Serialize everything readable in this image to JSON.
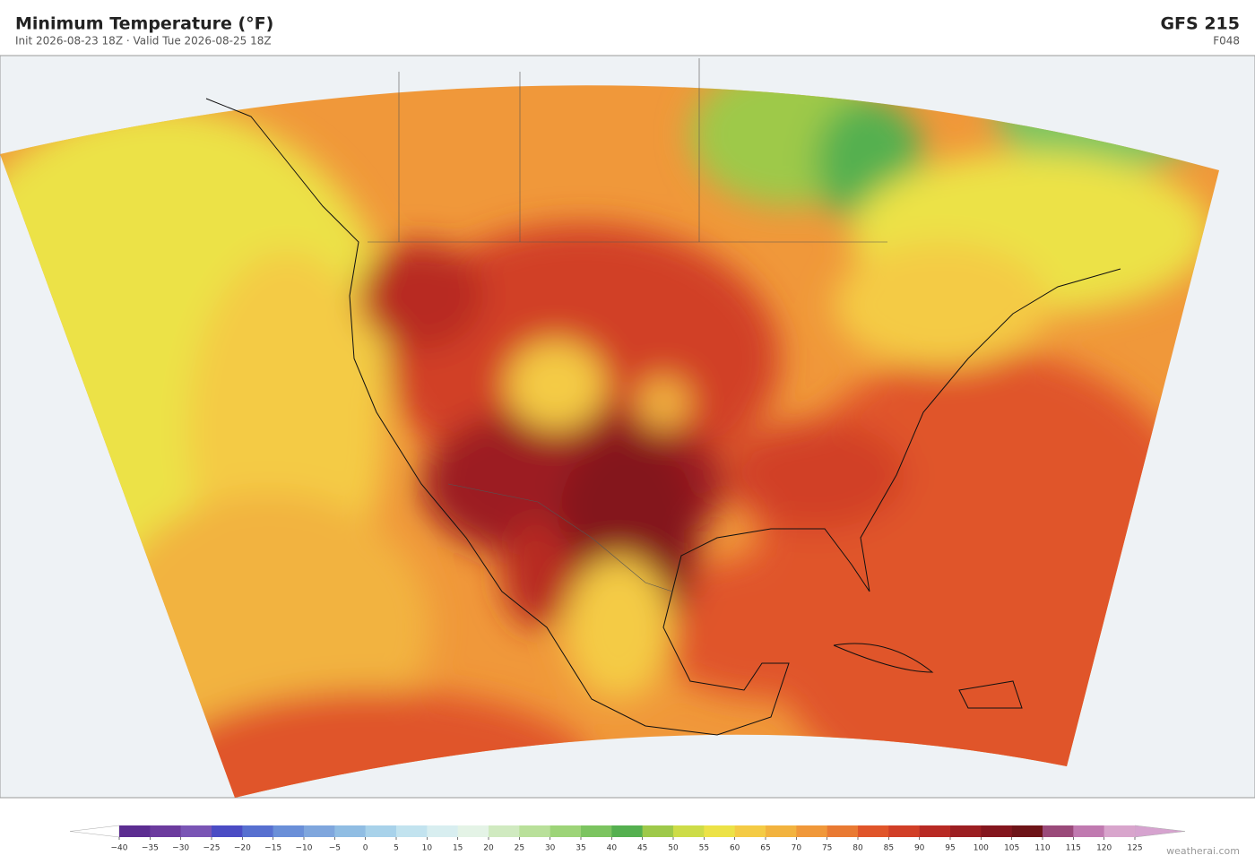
{
  "header": {
    "title": "Minimum Temperature  (°F)",
    "subtitle": "Init 2026-08-23 18Z   ·   Valid Tue 2026-08-25 18Z",
    "model": "GFS  215",
    "forecast_hour": "F048"
  },
  "colorbar": {
    "ticks": [
      {
        "value": -40,
        "label": "−40"
      },
      {
        "value": -35,
        "label": "−35"
      },
      {
        "value": -30,
        "label": "−30"
      },
      {
        "value": -25,
        "label": "−25"
      },
      {
        "value": -20,
        "label": "−20"
      },
      {
        "value": -15,
        "label": "−15"
      },
      {
        "value": -10,
        "label": "−10"
      },
      {
        "value": -5,
        "label": "−5"
      },
      0,
      5,
      10,
      15,
      20,
      25,
      30,
      35,
      40,
      45,
      50,
      55,
      60,
      65,
      70,
      75,
      80,
      85,
      90,
      95,
      100,
      105,
      110,
      115,
      120,
      125
    ],
    "colors": [
      "#5c2d91",
      "#6c3b9e",
      "#7a55b5",
      "#4b4cc4",
      "#5770d0",
      "#6a8fd8",
      "#7fa6dd",
      "#90bde3",
      "#a8d2ea",
      "#c2e3ef",
      "#d8eef0",
      "#e4f3e6",
      "#d0eac0",
      "#b9e09a",
      "#9dd478",
      "#7cc460",
      "#55b050",
      "#9ec94a",
      "#cddc48",
      "#ece247",
      "#f4cb45",
      "#f2b33f",
      "#f0983a",
      "#e97a33",
      "#e0552a",
      "#d13f27",
      "#b82a24",
      "#9c1f22",
      "#84161e",
      "#6e1418",
      "#9a4a7a",
      "#c07ab0",
      "#d8a5cc"
    ],
    "under": "#ffffff",
    "over": "#d6a3cf"
  },
  "footer": {
    "credit": "weatherai.com"
  }
}
